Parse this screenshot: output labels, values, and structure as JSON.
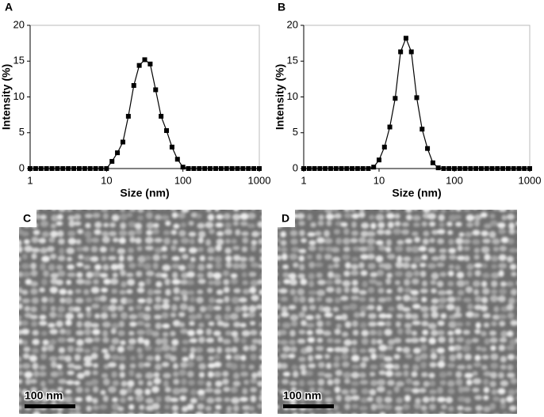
{
  "chart_data": [
    {
      "type": "line",
      "panel_label": "A",
      "xlabel": "Size (nm)",
      "ylabel": "Intensity (%)",
      "xlog": true,
      "color": "#000000",
      "x": [
        1,
        1.179,
        1.389,
        1.638,
        1.931,
        2.276,
        2.683,
        3.162,
        3.728,
        4.394,
        5.179,
        6.105,
        7.197,
        8.483,
        10,
        11.79,
        13.89,
        16.38,
        19.31,
        22.76,
        26.83,
        31.62,
        37.28,
        43.94,
        51.79,
        61.05,
        71.97,
        84.83,
        100,
        117.9,
        138.9,
        163.8,
        193.1,
        227.6,
        268.3,
        316.2,
        372.8,
        439.4,
        517.9,
        610.5,
        719.7,
        848.3,
        1000
      ],
      "values": [
        0,
        0,
        0,
        0,
        0,
        0,
        0,
        0,
        0,
        0,
        0,
        0,
        0,
        0,
        0,
        1.0,
        2.2,
        3.7,
        7.3,
        11.6,
        14.4,
        15.2,
        14.6,
        11.0,
        7.3,
        5.3,
        3.0,
        1.3,
        0.2,
        0,
        0,
        0,
        0,
        0,
        0,
        0,
        0,
        0,
        0,
        0,
        0,
        0,
        0
      ],
      "xlim": [
        1,
        1000
      ],
      "xticks": [
        1,
        10,
        100,
        1000
      ],
      "ylim": [
        0,
        20
      ],
      "yticks": [
        0,
        5,
        10,
        15,
        20
      ]
    },
    {
      "type": "line",
      "panel_label": "B",
      "xlabel": "Size (nm)",
      "ylabel": "Intensity (%)",
      "xlog": true,
      "color": "#000000",
      "x": [
        1,
        1.179,
        1.389,
        1.638,
        1.931,
        2.276,
        2.683,
        3.162,
        3.728,
        4.394,
        5.179,
        6.105,
        7.197,
        8.483,
        10,
        11.79,
        13.89,
        16.38,
        19.31,
        22.76,
        26.83,
        31.62,
        37.28,
        43.94,
        51.79,
        61.05,
        71.97,
        84.83,
        100,
        117.9,
        138.9,
        163.8,
        193.1,
        227.6,
        268.3,
        316.2,
        372.8,
        439.4,
        517.9,
        610.5,
        719.7,
        848.3,
        1000
      ],
      "values": [
        0,
        0,
        0,
        0,
        0,
        0,
        0,
        0,
        0,
        0,
        0,
        0,
        0,
        0.2,
        1.2,
        3.0,
        5.8,
        9.8,
        16.3,
        18.2,
        16.3,
        9.9,
        5.5,
        2.8,
        0.8,
        0.1,
        0,
        0,
        0,
        0,
        0,
        0,
        0,
        0,
        0,
        0,
        0,
        0,
        0,
        0,
        0,
        0,
        0
      ],
      "xlim": [
        1,
        1000
      ],
      "xticks": [
        1,
        10,
        100,
        1000
      ],
      "ylim": [
        0,
        20
      ],
      "yticks": [
        0,
        5,
        10,
        15,
        20
      ]
    }
  ],
  "images": [
    {
      "label": "C",
      "scale_bar": "100 nm"
    },
    {
      "label": "D",
      "scale_bar": "100 nm"
    }
  ]
}
